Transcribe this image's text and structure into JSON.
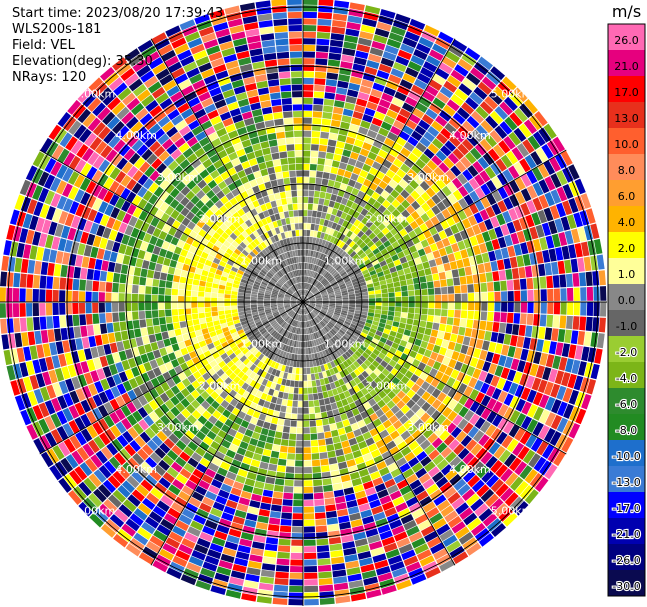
{
  "info": {
    "start_time": "Start time: 2023/08/20 17:39:43",
    "instrument": "WLS200s-181",
    "field": "Field: VEL",
    "elevation": "Elevation(deg): 35.30",
    "nrays": "NRays: 120"
  },
  "colorbar": {
    "unit": "m/s",
    "ticks": [
      "26.0",
      "21.0",
      "17.0",
      "13.0",
      "10.0",
      "8.0",
      "6.0",
      "4.0",
      "2.0",
      "1.0",
      "0.0",
      "-1.0",
      "-2.0",
      "-4.0",
      "-6.0",
      "-8.0",
      "-10.0",
      "-13.0",
      "-17.0",
      "-21.0",
      "-26.0",
      "-30.0"
    ],
    "colors": [
      "#ff69b4",
      "#e6007e",
      "#ff0000",
      "#e8301c",
      "#ff5f2e",
      "#ff8c5a",
      "#ff9e30",
      "#ffb300",
      "#ffff00",
      "#ffff99",
      "#888888",
      "#666666",
      "#9acd32",
      "#7cb518",
      "#2e8b2e",
      "#228b22",
      "#1e6fcc",
      "#3a7bd5",
      "#0000ff",
      "#0000b0",
      "#000080",
      "#0a0a50"
    ]
  },
  "chart_data": {
    "type": "ppi",
    "field": "VEL",
    "units": "m/s",
    "elevation_deg": 35.3,
    "n_rays": 120,
    "range_rings_km": [
      1.0,
      2.0,
      3.0,
      4.0,
      5.0
    ],
    "ring_labels": [
      "1.00km",
      "2.00km",
      "3.00km",
      "4.00km",
      "5.00km"
    ],
    "color_levels": [
      -30.0,
      -26.0,
      -21.0,
      -17.0,
      -13.0,
      -10.0,
      -8.0,
      -6.0,
      -4.0,
      -2.0,
      -1.0,
      0.0,
      1.0,
      2.0,
      4.0,
      6.0,
      8.0,
      10.0,
      13.0,
      17.0,
      21.0,
      26.0
    ]
  }
}
